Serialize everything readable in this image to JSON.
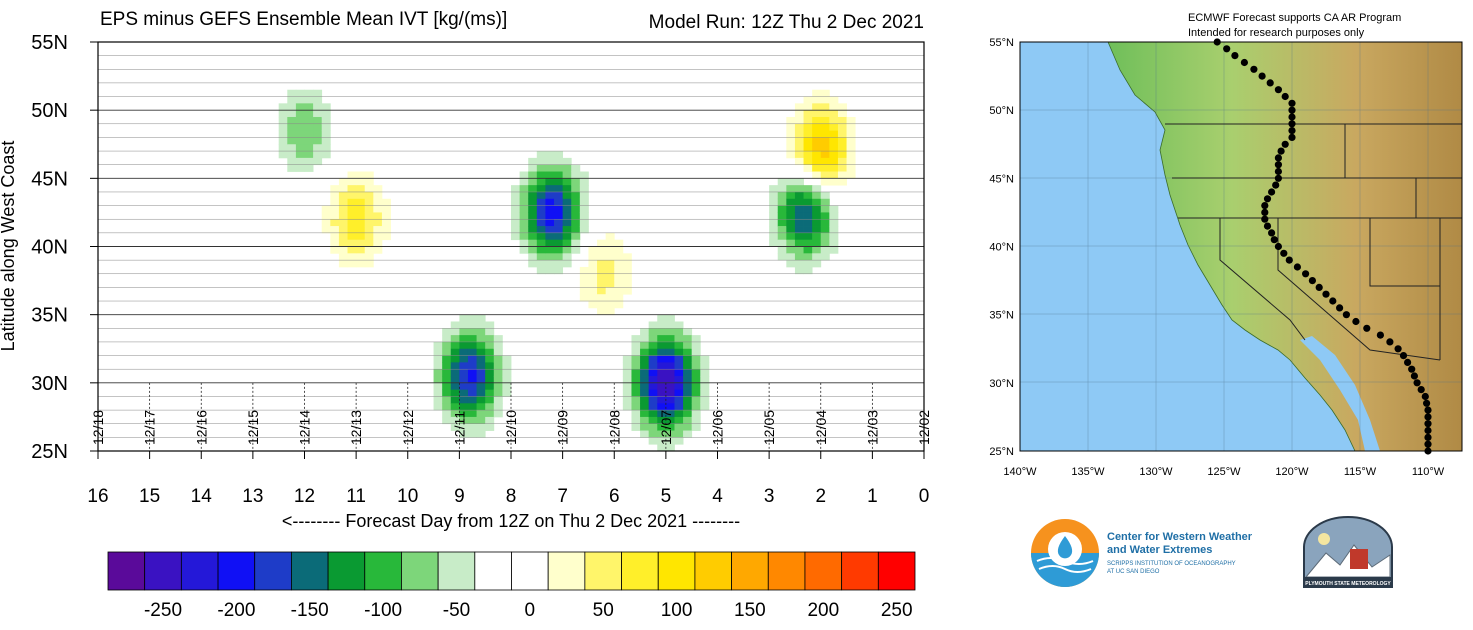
{
  "chart_data": {
    "type": "heatmap",
    "title": "EPS minus GEFS Ensemble Mean IVT [kg/(ms)]",
    "subtitle": "Model Run: 12Z Thu 2 Dec 2021",
    "xlabel": "<-------- Forecast Day from 12Z on Thu 2 Dec 2021 --------",
    "ylabel": "Latitude along West Coast",
    "xlim": [
      16,
      0
    ],
    "ylim": [
      25,
      55
    ],
    "x_ticks": [
      "16",
      "15",
      "14",
      "13",
      "12",
      "11",
      "10",
      "9",
      "8",
      "7",
      "6",
      "5",
      "4",
      "3",
      "2",
      "1",
      "0"
    ],
    "y_ticks": [
      "25N",
      "30N",
      "35N",
      "40N",
      "45N",
      "50N",
      "55N"
    ],
    "date_labels": [
      "12/18",
      "12/17",
      "12/16",
      "12/15",
      "12/14",
      "12/13",
      "12/12",
      "12/11",
      "12/10",
      "12/09",
      "12/08",
      "12/07",
      "12/06",
      "12/05",
      "12/04",
      "12/03",
      "12/02"
    ],
    "colorbar": {
      "tick_labels": [
        "-250",
        "-200",
        "-150",
        "-100",
        "-50",
        "0",
        "50",
        "100",
        "150",
        "200",
        "250"
      ],
      "colors": [
        "#5a0a9a",
        "#3a12c2",
        "#2418d8",
        "#1010f5",
        "#1e3cc8",
        "#0b6b78",
        "#0a9a32",
        "#28b83a",
        "#7dd67a",
        "#c8ecc8",
        "#ffffff",
        "#ffffff",
        "#ffffcc",
        "#fff56a",
        "#ffef2a",
        "#ffe600",
        "#ffcc00",
        "#ffa800",
        "#ff8800",
        "#ff6a00",
        "#ff3a00",
        "#ff0000"
      ]
    },
    "features": [
      {
        "day": 7.2,
        "lat": 42.5,
        "value": -190
      },
      {
        "day": 8.8,
        "lat": 30.5,
        "value": -180
      },
      {
        "day": 5.0,
        "lat": 30.0,
        "value": -250
      },
      {
        "day": 2.3,
        "lat": 42.5,
        "value": -160
      },
      {
        "day": 11.0,
        "lat": 42.0,
        "value": 90
      },
      {
        "day": 2.0,
        "lat": 47.0,
        "value": 150
      },
      {
        "day": 6.2,
        "lat": 38.0,
        "value": 60
      },
      {
        "day": 12.0,
        "lat": 48.5,
        "value": -70
      }
    ]
  },
  "map": {
    "header_line1": "ECMWF Forecast supports CA AR Program",
    "header_line2": "Intended for research purposes only",
    "lat_labels": [
      "55°N",
      "50°N",
      "45°N",
      "40°N",
      "35°N",
      "30°N",
      "25°N"
    ],
    "lon_labels": [
      "140°W",
      "135°W",
      "130°W",
      "125°W",
      "120°W",
      "115°W",
      "110°W"
    ],
    "ocean_color": "#8ec9f5",
    "land_color": "#8cc878"
  },
  "logos": {
    "cw3e_line1": "Center for Western Weather",
    "cw3e_line2": "and Water Extremes",
    "cw3e_line3": "SCRIPPS INSTITUTION OF OCEANOGRAPHY",
    "cw3e_line4": "AT UC SAN DIEGO",
    "psu_text": "PLYMOUTH STATE METEOROLOGY"
  }
}
